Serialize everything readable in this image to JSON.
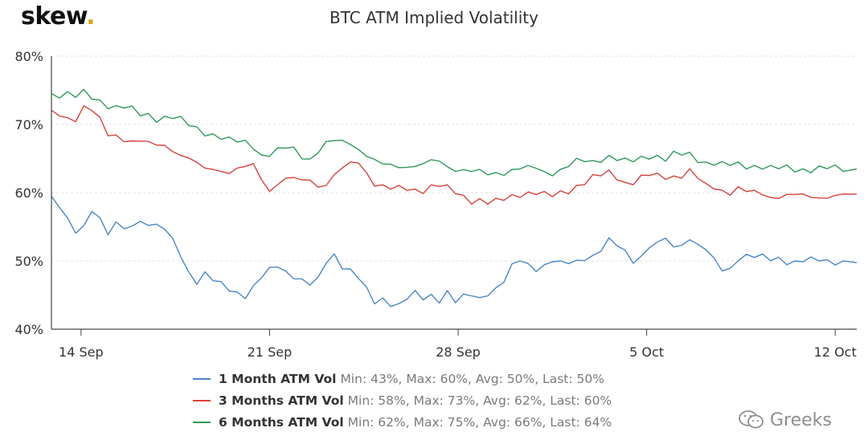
{
  "brand": {
    "name": "skew",
    "dot": "."
  },
  "watermark": {
    "text": "Greeks",
    "icon": "wechat-icon"
  },
  "chart_data": {
    "type": "line",
    "title": "BTC ATM Implied Volatility",
    "xlabel": "",
    "ylabel": "",
    "x_ticks": [
      "14 Sep",
      "21 Sep",
      "28 Sep",
      "5 Oct",
      "12 Oct"
    ],
    "y_ticks": [
      "40%",
      "50%",
      "60%",
      "70%",
      "80%"
    ],
    "ylim": [
      40,
      80
    ],
    "xlim_days": [
      12.9,
      42.8
    ],
    "x_unit": "day-of-period (14 Sep = 14, 5 Oct = 35)",
    "grid": true,
    "legend_placement": "bottom",
    "series": [
      {
        "name": "1 Month ATM Vol",
        "stats": "Min: 43%, Max: 60%, Avg: 50%, Last: 50%",
        "color": "#4a86c5",
        "x": [
          12.9,
          13.2,
          13.5,
          13.8,
          14.1,
          14.4,
          14.7,
          15.0,
          15.3,
          15.6,
          15.9,
          16.2,
          16.5,
          16.8,
          17.1,
          17.4,
          17.7,
          18.0,
          18.3,
          18.6,
          18.9,
          19.2,
          19.5,
          19.8,
          20.1,
          20.4,
          20.7,
          21.0,
          21.3,
          21.6,
          21.9,
          22.2,
          22.5,
          22.8,
          23.1,
          23.4,
          23.7,
          24.0,
          24.3,
          24.6,
          24.9,
          25.2,
          25.5,
          25.8,
          26.1,
          26.4,
          26.7,
          27.0,
          27.3,
          27.6,
          27.9,
          28.2,
          28.5,
          28.8,
          29.1,
          29.4,
          29.7,
          30.0,
          30.3,
          30.6,
          30.9,
          31.2,
          31.5,
          31.8,
          32.1,
          32.4,
          32.7,
          33.0,
          33.3,
          33.6,
          33.9,
          34.2,
          34.5,
          34.8,
          35.1,
          35.4,
          35.7,
          36.0,
          36.3,
          36.6,
          36.9,
          37.2,
          37.5,
          37.8,
          38.1,
          38.4,
          38.7,
          39.0,
          39.3,
          39.6,
          39.9,
          40.2,
          40.5,
          40.8,
          41.1,
          41.4,
          41.7,
          42.0,
          42.3,
          42.8
        ],
        "values": [
          59.5,
          57.5,
          56.0,
          54.0,
          55.5,
          57.5,
          56.5,
          53.5,
          55.5,
          54.5,
          55.5,
          56.0,
          55.5,
          55.0,
          54.5,
          53.0,
          51.0,
          48.5,
          47.0,
          48.0,
          47.0,
          46.5,
          46.0,
          45.5,
          45.0,
          46.0,
          47.5,
          48.5,
          49.5,
          48.5,
          48.0,
          47.0,
          46.5,
          47.0,
          50.0,
          51.0,
          49.5,
          48.5,
          47.5,
          45.5,
          44.0,
          44.5,
          44.0,
          43.5,
          44.5,
          45.0,
          44.5,
          45.0,
          44.5,
          45.5,
          44.0,
          44.5,
          45.0,
          44.5,
          45.5,
          46.0,
          47.0,
          49.0,
          50.0,
          49.5,
          49.0,
          49.5,
          50.0,
          49.5,
          49.5,
          50.0,
          50.5,
          51.0,
          51.5,
          53.0,
          52.0,
          51.5,
          50.0,
          51.0,
          52.0,
          52.5,
          53.0,
          52.0,
          52.5,
          53.5,
          52.5,
          51.5,
          50.0,
          48.5,
          49.0,
          50.5,
          51.0,
          50.5,
          50.5,
          50.0,
          50.5,
          50.0,
          50.0,
          50.0,
          50.0,
          50.0,
          50.0,
          50.0,
          50.0,
          50.0
        ]
      },
      {
        "name": "3 Months ATM Vol",
        "stats": "Min: 58%, Max: 73%, Avg: 62%, Last: 60%",
        "color": "#d9423b",
        "x": [
          12.9,
          13.2,
          13.5,
          13.8,
          14.1,
          14.4,
          14.7,
          15.0,
          15.3,
          15.6,
          15.9,
          16.2,
          16.5,
          16.8,
          17.1,
          17.4,
          17.7,
          18.0,
          18.3,
          18.6,
          18.9,
          19.2,
          19.5,
          19.8,
          20.1,
          20.4,
          20.7,
          21.0,
          21.3,
          21.6,
          21.9,
          22.2,
          22.5,
          22.8,
          23.1,
          23.4,
          23.7,
          24.0,
          24.3,
          24.6,
          24.9,
          25.2,
          25.5,
          25.8,
          26.1,
          26.4,
          26.7,
          27.0,
          27.3,
          27.6,
          27.9,
          28.2,
          28.5,
          28.8,
          29.1,
          29.4,
          29.7,
          30.0,
          30.3,
          30.6,
          30.9,
          31.2,
          31.5,
          31.8,
          32.1,
          32.4,
          32.7,
          33.0,
          33.3,
          33.6,
          33.9,
          34.2,
          34.5,
          34.8,
          35.1,
          35.4,
          35.7,
          36.0,
          36.3,
          36.6,
          36.9,
          37.2,
          37.5,
          37.8,
          38.1,
          38.4,
          38.7,
          39.0,
          39.3,
          39.6,
          39.9,
          40.2,
          40.5,
          40.8,
          41.1,
          41.4,
          41.7,
          42.0,
          42.3,
          42.8
        ],
        "values": [
          71.5,
          71.5,
          71.0,
          71.0,
          72.5,
          72.0,
          70.5,
          68.5,
          68.5,
          68.0,
          67.5,
          67.5,
          67.0,
          67.0,
          67.0,
          66.5,
          65.5,
          65.0,
          64.0,
          63.5,
          63.5,
          63.5,
          63.0,
          63.5,
          63.5,
          64.0,
          62.0,
          60.5,
          61.5,
          62.0,
          62.0,
          61.5,
          62.0,
          61.0,
          61.5,
          62.5,
          63.5,
          64.0,
          64.5,
          63.0,
          61.5,
          61.0,
          60.5,
          60.5,
          60.5,
          60.5,
          60.5,
          61.0,
          61.0,
          60.5,
          60.0,
          59.5,
          59.0,
          59.0,
          58.5,
          58.5,
          59.0,
          59.5,
          60.0,
          60.0,
          60.0,
          59.5,
          59.5,
          60.0,
          60.5,
          61.0,
          61.5,
          62.0,
          62.5,
          63.0,
          62.5,
          61.5,
          61.5,
          62.0,
          62.5,
          62.5,
          62.5,
          62.5,
          62.5,
          63.0,
          62.0,
          61.0,
          61.0,
          60.5,
          60.0,
          60.5,
          60.0,
          60.0,
          60.0,
          59.5,
          59.5,
          59.5,
          59.5,
          59.5,
          59.5,
          59.5,
          59.5,
          59.5,
          59.5,
          59.5
        ]
      },
      {
        "name": "6 Months ATM Vol",
        "stats": "Min: 62%, Max: 75%, Avg: 66%, Last: 64%",
        "color": "#2f9a5a",
        "x": [
          12.9,
          13.2,
          13.5,
          13.8,
          14.1,
          14.4,
          14.7,
          15.0,
          15.3,
          15.6,
          15.9,
          16.2,
          16.5,
          16.8,
          17.1,
          17.4,
          17.7,
          18.0,
          18.3,
          18.6,
          18.9,
          19.2,
          19.5,
          19.8,
          20.1,
          20.4,
          20.7,
          21.0,
          21.3,
          21.6,
          21.9,
          22.2,
          22.5,
          22.8,
          23.1,
          23.4,
          23.7,
          24.0,
          24.3,
          24.6,
          24.9,
          25.2,
          25.5,
          25.8,
          26.1,
          26.4,
          26.7,
          27.0,
          27.3,
          27.6,
          27.9,
          28.2,
          28.5,
          28.8,
          29.1,
          29.4,
          29.7,
          30.0,
          30.3,
          30.6,
          30.9,
          31.2,
          31.5,
          31.8,
          32.1,
          32.4,
          32.7,
          33.0,
          33.3,
          33.6,
          33.9,
          34.2,
          34.5,
          34.8,
          35.1,
          35.4,
          35.7,
          36.0,
          36.3,
          36.6,
          36.9,
          37.2,
          37.5,
          37.8,
          38.1,
          38.4,
          38.7,
          39.0,
          39.3,
          39.6,
          39.9,
          40.2,
          40.5,
          40.8,
          41.1,
          41.4,
          41.7,
          42.0,
          42.3,
          42.8
        ],
        "values": [
          74.5,
          74.5,
          74.5,
          74.0,
          74.5,
          74.0,
          73.5,
          73.0,
          72.5,
          72.5,
          72.0,
          71.5,
          71.5,
          71.0,
          71.0,
          71.0,
          70.5,
          70.0,
          69.5,
          69.0,
          68.5,
          68.0,
          67.5,
          67.5,
          67.5,
          67.0,
          65.5,
          65.5,
          66.0,
          66.5,
          66.5,
          65.5,
          65.0,
          66.0,
          67.0,
          67.5,
          67.5,
          67.5,
          66.5,
          65.5,
          64.5,
          64.0,
          64.0,
          64.0,
          64.0,
          64.0,
          64.0,
          64.5,
          64.5,
          64.0,
          63.5,
          63.5,
          63.0,
          63.0,
          62.5,
          63.0,
          63.0,
          63.5,
          63.5,
          63.5,
          63.5,
          63.0,
          63.0,
          63.5,
          64.0,
          64.5,
          64.5,
          64.5,
          65.0,
          65.5,
          65.0,
          64.5,
          64.5,
          65.0,
          65.5,
          65.5,
          65.0,
          65.5,
          65.5,
          65.5,
          65.0,
          64.5,
          64.5,
          64.0,
          64.0,
          64.0,
          64.0,
          64.0,
          64.0,
          63.5,
          63.5,
          63.5,
          63.5,
          63.5,
          63.5,
          63.5,
          63.5,
          63.5,
          63.5,
          63.5
        ]
      }
    ]
  }
}
